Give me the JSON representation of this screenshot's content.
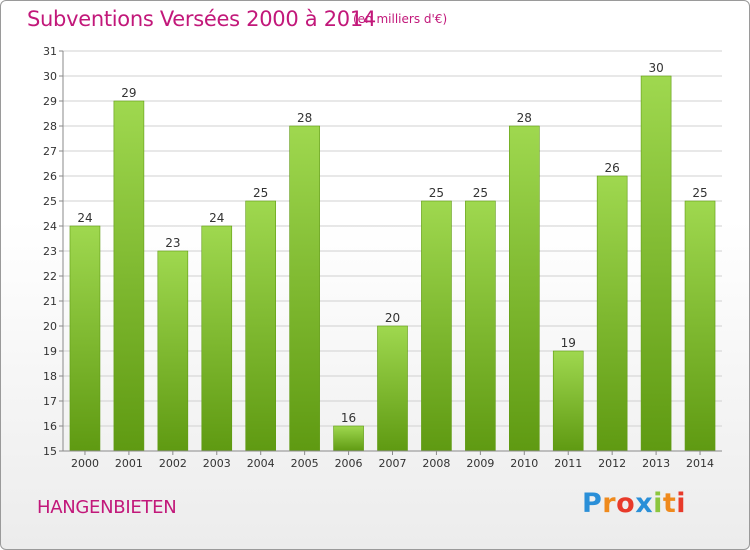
{
  "header": {
    "title": "Subventions Versées 2000 à 2014",
    "subtitle": "(en milliers d'€)"
  },
  "footer": {
    "place": "HANGENBIETEN",
    "logo_letters": [
      "P",
      "r",
      "o",
      "x",
      "i",
      "t",
      "i"
    ]
  },
  "colors": {
    "accent": "#c2187a",
    "bar_light": "#9fd84f",
    "bar_dark": "#5f9a12",
    "grid": "#d0d0d0",
    "axis": "#8a8a8a",
    "logo": [
      "#2a8fd8",
      "#ef8a1c",
      "#e83a2a",
      "#2a8fd8",
      "#8cc63e",
      "#ef8a1c",
      "#e83a2a"
    ]
  },
  "chart_data": {
    "type": "bar",
    "categories": [
      "2000",
      "2001",
      "2002",
      "2003",
      "2004",
      "2005",
      "2006",
      "2007",
      "2008",
      "2009",
      "2010",
      "2011",
      "2012",
      "2013",
      "2014"
    ],
    "values": [
      24,
      29,
      23,
      24,
      25,
      28,
      16,
      20,
      25,
      25,
      28,
      19,
      26,
      30,
      25
    ],
    "title": "Subventions Versées 2000 à 2014",
    "subtitle": "(en milliers d'€)",
    "xlabel": "",
    "ylabel": "",
    "ylim": [
      15,
      31
    ],
    "yticks": [
      15,
      16,
      17,
      18,
      19,
      20,
      21,
      22,
      23,
      24,
      25,
      26,
      27,
      28,
      29,
      30,
      31
    ],
    "grid": "horizontal",
    "data_labels": true
  }
}
